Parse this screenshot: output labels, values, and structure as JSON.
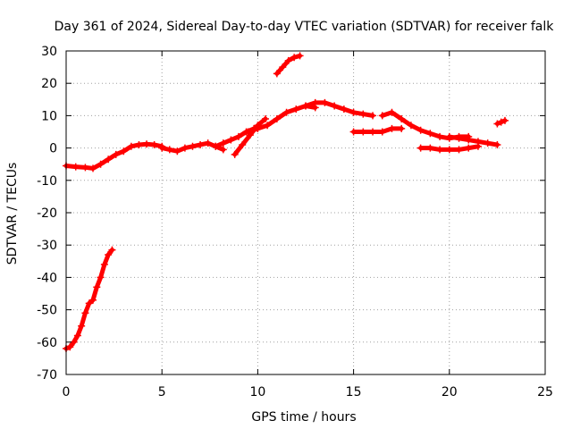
{
  "chart_data": {
    "type": "scatter",
    "title": "Day 361 of 2024, Sidereal Day-to-day VTEC variation (SDTVAR) for receiver falk",
    "xlabel": "GPS time / hours",
    "ylabel": "SDTVAR / TECUs",
    "xlim": [
      0,
      25
    ],
    "ylim": [
      -70,
      30
    ],
    "xticks": [
      0,
      5,
      10,
      15,
      20,
      25
    ],
    "yticks": [
      -70,
      -60,
      -50,
      -40,
      -30,
      -20,
      -10,
      0,
      10,
      20,
      30
    ],
    "grid": true,
    "legend": "none",
    "marker": "plus",
    "color": "#ff0000",
    "series": [
      {
        "name": "arc-1",
        "x": [
          0.0,
          0.2,
          0.4,
          0.6,
          0.8,
          1.0,
          1.2,
          1.4,
          1.6,
          1.8,
          2.0,
          2.2,
          2.4
        ],
        "y": [
          -62,
          -61.5,
          -60,
          -58,
          -55,
          -51,
          -48,
          -47,
          -43,
          -40,
          -36,
          -33,
          -31.5
        ]
      },
      {
        "name": "arc-2",
        "x": [
          0.0,
          0.5,
          1.0,
          1.4,
          1.8,
          2.2,
          2.6,
          3.0,
          3.4,
          3.8,
          4.2,
          4.6,
          5.0
        ],
        "y": [
          -5.5,
          -5.8,
          -6,
          -6.3,
          -5,
          -3.5,
          -2,
          -1,
          0.5,
          1,
          1.2,
          1,
          0.5
        ]
      },
      {
        "name": "arc-3",
        "x": [
          5.0,
          5.4,
          5.8,
          6.2,
          6.6,
          7.0,
          7.4,
          7.8,
          8.2
        ],
        "y": [
          0,
          -0.5,
          -1,
          0,
          0.5,
          1,
          1.5,
          0.5,
          -0.5
        ]
      },
      {
        "name": "arc-4",
        "x": [
          7.8,
          8.2,
          8.6,
          9.0,
          9.4,
          9.8
        ],
        "y": [
          0.5,
          1.5,
          2.5,
          3.5,
          5,
          6
        ]
      },
      {
        "name": "arc-5",
        "x": [
          8.8,
          9.2,
          9.6,
          10.0,
          10.4
        ],
        "y": [
          -2,
          1,
          4,
          7,
          9
        ]
      },
      {
        "name": "arc-6",
        "x": [
          9.5,
          10.0,
          10.5,
          11.0,
          11.5,
          12.0,
          12.5,
          13.0
        ],
        "y": [
          5,
          6,
          7,
          9,
          11,
          12,
          13,
          12.5
        ]
      },
      {
        "name": "arc-7",
        "x": [
          11.0,
          11.3,
          11.6,
          11.9,
          12.2
        ],
        "y": [
          23,
          25,
          27,
          28,
          28.5
        ]
      },
      {
        "name": "arc-8",
        "x": [
          12.5,
          13.0,
          13.5,
          14.0,
          14.5,
          15.0,
          15.5,
          16.0
        ],
        "y": [
          13,
          14,
          14,
          13,
          12,
          11,
          10.5,
          10
        ]
      },
      {
        "name": "arc-9",
        "x": [
          15.0,
          15.5,
          16.0,
          16.5,
          17.0,
          17.5
        ],
        "y": [
          5,
          5,
          5,
          5,
          6,
          6
        ]
      },
      {
        "name": "arc-10",
        "x": [
          16.5,
          17.0,
          17.5,
          18.0,
          18.5,
          19.0,
          19.5,
          20.0,
          20.5,
          21.0
        ],
        "y": [
          10,
          11,
          9,
          7,
          5.5,
          4.5,
          3.5,
          3,
          3.5,
          3.5
        ]
      },
      {
        "name": "arc-11",
        "x": [
          18.5,
          19.0,
          19.5,
          20.0,
          20.5,
          21.0,
          21.5
        ],
        "y": [
          0,
          0,
          -0.5,
          -0.5,
          -0.5,
          0,
          0.5
        ]
      },
      {
        "name": "arc-12",
        "x": [
          20.0,
          20.5,
          21.0,
          21.5,
          22.0,
          22.5
        ],
        "y": [
          3.5,
          3,
          2.5,
          2,
          1.5,
          1
        ]
      },
      {
        "name": "arc-13",
        "x": [
          22.5,
          22.7,
          22.9
        ],
        "y": [
          7.5,
          8,
          8.5
        ]
      }
    ]
  }
}
